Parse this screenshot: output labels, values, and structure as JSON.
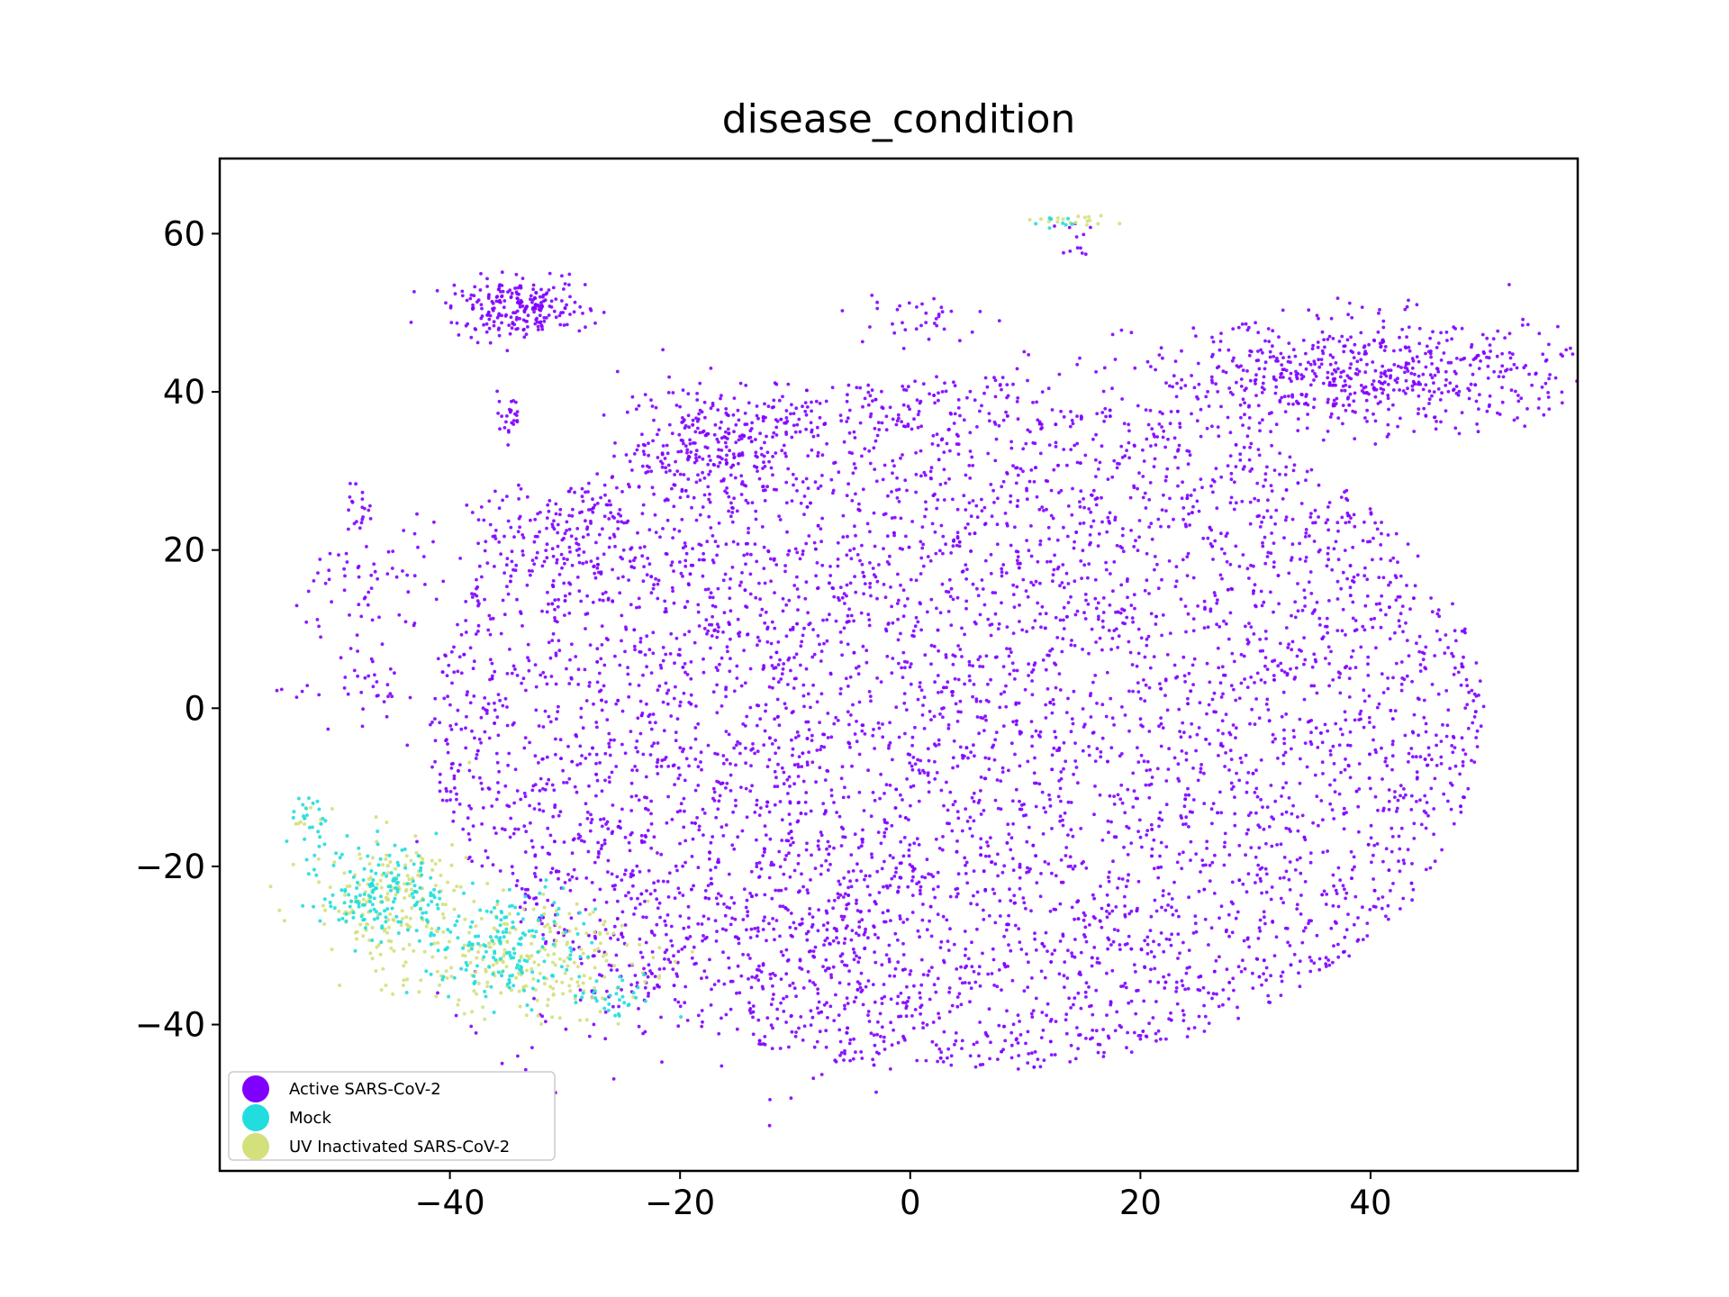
{
  "chart_data": {
    "type": "scatter",
    "title": "disease_condition",
    "xlabel": "",
    "ylabel": "",
    "xlim": [
      -60,
      58
    ],
    "ylim": [
      -58.5,
      69.5
    ],
    "x_ticks": [
      -40,
      -20,
      0,
      20,
      40
    ],
    "x_tick_labels": [
      "−40",
      "−20",
      "0",
      "20",
      "40"
    ],
    "y_ticks": [
      -40,
      -20,
      0,
      20,
      40,
      60
    ],
    "y_tick_labels": [
      "−40",
      "−20",
      "0",
      "20",
      "40",
      "60"
    ],
    "grid": false,
    "legend_position": "lower-left",
    "series": [
      {
        "name": "Active SARS-CoV-2",
        "color": "#8000ff",
        "marker_size": "small",
        "count_approx": 15000,
        "clusters": [
          {
            "region": "main body",
            "center": [
              5,
              -2
            ],
            "spread": [
              24,
              22
            ],
            "density": "high"
          },
          {
            "region": "upper-left lobe",
            "center": [
              -17,
              34
            ],
            "spread": [
              4,
              4
            ]
          },
          {
            "region": "top-right island",
            "center": [
              40,
              42
            ],
            "spread": [
              10,
              4
            ],
            "density": "high"
          },
          {
            "region": "top-left island",
            "center": [
              -34,
              50.5
            ],
            "spread": [
              3,
              2
            ],
            "density": "high"
          },
          {
            "region": "small island",
            "center": [
              -35,
              37
            ],
            "spread": [
              1,
              1.5
            ]
          },
          {
            "region": "left-middle island",
            "center": [
              -32,
              23
            ],
            "spread": [
              4,
              3
            ]
          },
          {
            "region": "left strand",
            "center": [
              -47,
              12
            ],
            "spread": [
              3,
              10
            ]
          },
          {
            "region": "top-center bridge",
            "center": [
              0,
              49
            ],
            "spread": [
              3,
              2
            ]
          },
          {
            "region": "top small island",
            "center": [
              14,
              59
            ],
            "spread": [
              1,
              2
            ]
          }
        ]
      },
      {
        "name": "Mock",
        "color": "#22dddd",
        "marker_size": "small",
        "clusters": [
          {
            "region": "lower-left band",
            "center": [
              -46,
              -23
            ],
            "spread": [
              3,
              3
            ]
          },
          {
            "region": "lower-left band",
            "center": [
              -35,
              -30
            ],
            "spread": [
              4,
              4
            ]
          },
          {
            "region": "far-left tip",
            "center": [
              -52,
              -15
            ],
            "spread": [
              1,
              2
            ]
          }
        ]
      },
      {
        "name": "UV Inactivated SARS-CoV-2",
        "color": "#d4e07c",
        "marker_size": "small",
        "clusters": [
          {
            "region": "lower-left band",
            "center": [
              -45,
              -24
            ],
            "spread": [
              4,
              4
            ]
          },
          {
            "region": "lower-left band",
            "center": [
              -34,
              -32
            ],
            "spread": [
              6,
              4
            ]
          },
          {
            "region": "top small island",
            "center": [
              15,
              62
            ],
            "spread": [
              2,
              0.5
            ]
          }
        ]
      }
    ]
  }
}
